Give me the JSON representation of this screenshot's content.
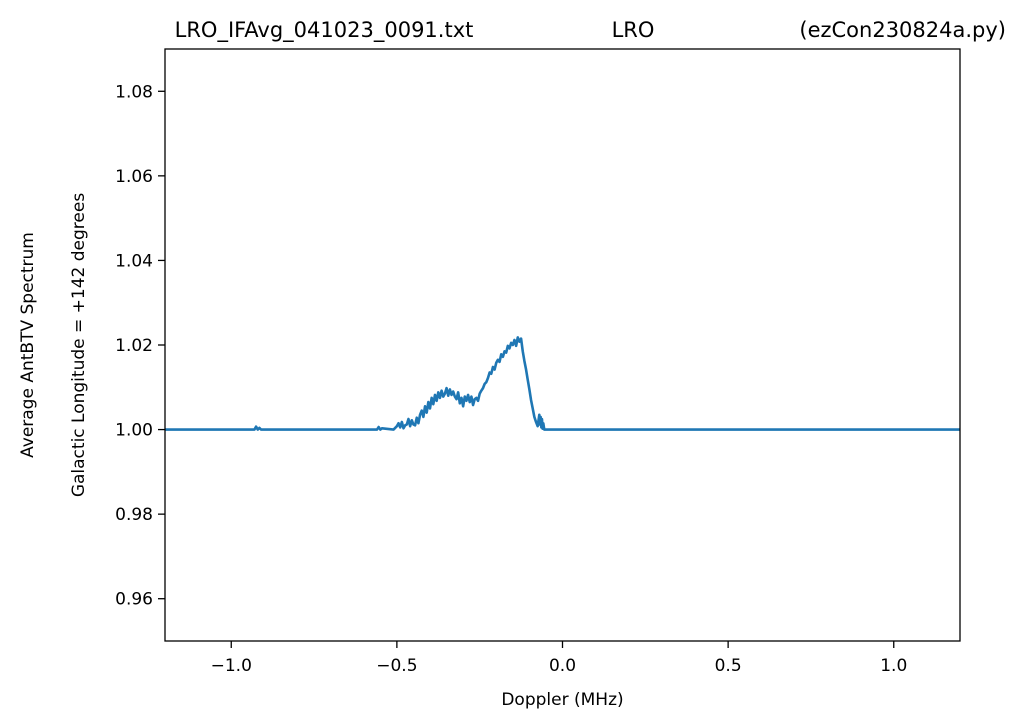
{
  "chart_data": {
    "type": "line",
    "title": {
      "left": "LRO_IFAvg_041023_0091.txt",
      "center": "LRO",
      "right": "(ezCon230824a.py)"
    },
    "xlabel": "Doppler (MHz)",
    "ylabel": "Galactic Longitude = +142 degrees",
    "ylabel_outer": "Average AntBTV Spectrum",
    "xlim": [
      -1.2,
      1.2
    ],
    "ylim": [
      0.95,
      1.09
    ],
    "xticks": [
      -1.0,
      -0.5,
      0.0,
      0.5,
      1.0
    ],
    "xtick_labels": [
      "−1.0",
      "−0.5",
      "0.0",
      "0.5",
      "1.0"
    ],
    "yticks": [
      0.96,
      0.98,
      1.0,
      1.02,
      1.04,
      1.06,
      1.08
    ],
    "ytick_labels": [
      "0.96",
      "0.98",
      "1.00",
      "1.02",
      "1.04",
      "1.06",
      "1.08"
    ],
    "grid": false,
    "series_color": "#1f77b4",
    "series": [
      {
        "x": [
          -1.2,
          -0.93,
          -0.925,
          -0.92,
          -0.915,
          -0.91,
          -0.56,
          -0.555,
          -0.55,
          -0.545,
          -0.51,
          -0.5,
          -0.495,
          -0.49,
          -0.485,
          -0.48,
          -0.475,
          -0.47,
          -0.465,
          -0.46,
          -0.455,
          -0.45,
          -0.445,
          -0.44,
          -0.435,
          -0.43,
          -0.425,
          -0.42,
          -0.415,
          -0.41,
          -0.405,
          -0.4,
          -0.395,
          -0.39,
          -0.385,
          -0.38,
          -0.375,
          -0.37,
          -0.365,
          -0.36,
          -0.355,
          -0.35,
          -0.345,
          -0.34,
          -0.335,
          -0.33,
          -0.325,
          -0.32,
          -0.315,
          -0.31,
          -0.305,
          -0.3,
          -0.295,
          -0.29,
          -0.285,
          -0.28,
          -0.275,
          -0.27,
          -0.265,
          -0.26,
          -0.255,
          -0.25,
          -0.245,
          -0.24,
          -0.235,
          -0.23,
          -0.225,
          -0.22,
          -0.215,
          -0.21,
          -0.205,
          -0.2,
          -0.195,
          -0.19,
          -0.185,
          -0.18,
          -0.175,
          -0.17,
          -0.165,
          -0.16,
          -0.155,
          -0.15,
          -0.145,
          -0.14,
          -0.135,
          -0.13,
          -0.125,
          -0.12,
          -0.115,
          -0.11,
          -0.105,
          -0.1,
          -0.095,
          -0.09,
          -0.085,
          -0.08,
          -0.075,
          -0.07,
          -0.068,
          -0.066,
          -0.064,
          -0.062,
          -0.06,
          -0.058,
          -0.055,
          -0.05,
          1.2
        ],
        "y": [
          1.0,
          1.0,
          1.0007,
          1.0,
          1.0004,
          1.0,
          1.0,
          1.0006,
          1.0,
          1.0003,
          1.0,
          1.0008,
          1.0015,
          1.0005,
          1.0018,
          1.0003,
          1.001,
          1.0012,
          1.0025,
          1.0008,
          1.0022,
          1.0012,
          1.001,
          1.0028,
          1.0015,
          1.0035,
          1.0045,
          1.003,
          1.0055,
          1.004,
          1.0065,
          1.005,
          1.0075,
          1.006,
          1.0082,
          1.0068,
          1.0088,
          1.0075,
          1.0092,
          1.0078,
          1.0085,
          1.0098,
          1.008,
          1.0095,
          1.0082,
          1.009,
          1.0078,
          1.0072,
          1.0088,
          1.0062,
          1.0075,
          1.0055,
          1.0078,
          1.0068,
          1.0082,
          1.0065,
          1.0078,
          1.0058,
          1.0072,
          1.0075,
          1.0068,
          1.0085,
          1.0092,
          1.0098,
          1.0108,
          1.0112,
          1.0122,
          1.0135,
          1.0132,
          1.0148,
          1.0142,
          1.0158,
          1.0165,
          1.016,
          1.0178,
          1.0172,
          1.0185,
          1.0182,
          1.0198,
          1.0192,
          1.0205,
          1.02,
          1.0212,
          1.0198,
          1.0218,
          1.0208,
          1.0215,
          1.0185,
          1.0162,
          1.0142,
          1.0118,
          1.0095,
          1.007,
          1.005,
          1.003,
          1.0018,
          1.0008,
          1.0035,
          1.0012,
          1.003,
          1.0005,
          1.0025,
          1.0002,
          1.0015,
          1.0,
          1.0,
          1.0
        ]
      }
    ]
  }
}
